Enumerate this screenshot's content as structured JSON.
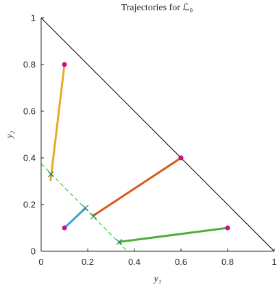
{
  "chart_data": {
    "type": "line",
    "title": "Trajectories for ℒ₀",
    "xlabel": "y₁",
    "ylabel": "y₂",
    "xlim": [
      0,
      1
    ],
    "ylim": [
      0,
      1
    ],
    "x_ticks": [
      "0",
      "0.2",
      "0.4",
      "0.6",
      "0.8",
      "1"
    ],
    "y_ticks": [
      "0",
      "0.2",
      "0.4",
      "0.6",
      "0.8",
      "1"
    ],
    "x_tick_values": [
      0,
      0.2,
      0.4,
      0.6,
      0.8,
      1
    ],
    "y_tick_values": [
      0,
      0.2,
      0.4,
      0.6,
      0.8,
      1
    ],
    "grid": false,
    "boundary_line": {
      "x": [
        0,
        1
      ],
      "y": [
        1,
        0
      ],
      "color": "#000000"
    },
    "reference_line": {
      "x": [
        0,
        0.37
      ],
      "y": [
        0.375,
        0
      ],
      "color": "#33dd33",
      "style": "dashed"
    },
    "series": [
      {
        "color": "#e8a92a",
        "x": [
          0.1,
          0.04
        ],
        "y": [
          0.8,
          0.3
        ],
        "start_marker": "dot",
        "cross_x": 0.042,
        "cross_y": 0.33
      },
      {
        "color": "#d9571a",
        "x": [
          0.6,
          0.22
        ],
        "y": [
          0.4,
          0.15
        ],
        "start_marker": "dot",
        "cross_x": 0.225,
        "cross_y": 0.15
      },
      {
        "color": "#2ba8e0",
        "x": [
          0.1,
          0.19
        ],
        "y": [
          0.1,
          0.185
        ],
        "start_marker": "dot",
        "cross_x": 0.19,
        "cross_y": 0.185
      },
      {
        "color": "#4daf3a",
        "x": [
          0.8,
          0.335
        ],
        "y": [
          0.1,
          0.04
        ],
        "start_marker": "dot",
        "cross_x": 0.335,
        "cross_y": 0.04
      }
    ],
    "marker_color": "#cc1188",
    "cross_color": "#1f7a6a"
  }
}
